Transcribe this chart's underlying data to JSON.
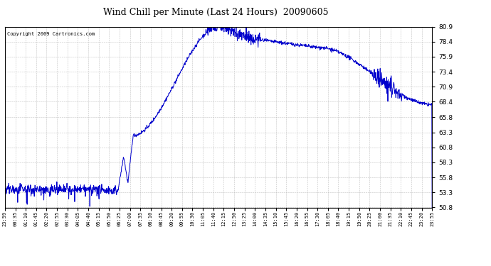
{
  "title": "Wind Chill per Minute (Last 24 Hours)  20090605",
  "copyright": "Copyright 2009 Cartronics.com",
  "line_color": "#0000cc",
  "background_color": "#ffffff",
  "grid_color": "#aaaaaa",
  "ylim": [
    50.8,
    80.9
  ],
  "yticks": [
    50.8,
    53.3,
    55.8,
    58.3,
    60.8,
    63.3,
    65.8,
    68.4,
    70.9,
    73.4,
    75.9,
    78.4,
    80.9
  ],
  "xtick_labels": [
    "23:59",
    "00:35",
    "01:10",
    "01:45",
    "02:20",
    "02:55",
    "03:30",
    "04:05",
    "04:40",
    "05:15",
    "05:50",
    "06:25",
    "07:00",
    "07:35",
    "08:10",
    "08:45",
    "09:20",
    "09:55",
    "10:30",
    "11:05",
    "11:40",
    "12:15",
    "12:50",
    "13:25",
    "14:00",
    "14:35",
    "15:10",
    "15:45",
    "16:20",
    "16:55",
    "17:30",
    "18:05",
    "18:40",
    "19:15",
    "19:50",
    "20:25",
    "21:00",
    "21:35",
    "22:10",
    "22:45",
    "23:20",
    "23:55"
  ],
  "num_points": 1440,
  "line_width": 0.7
}
